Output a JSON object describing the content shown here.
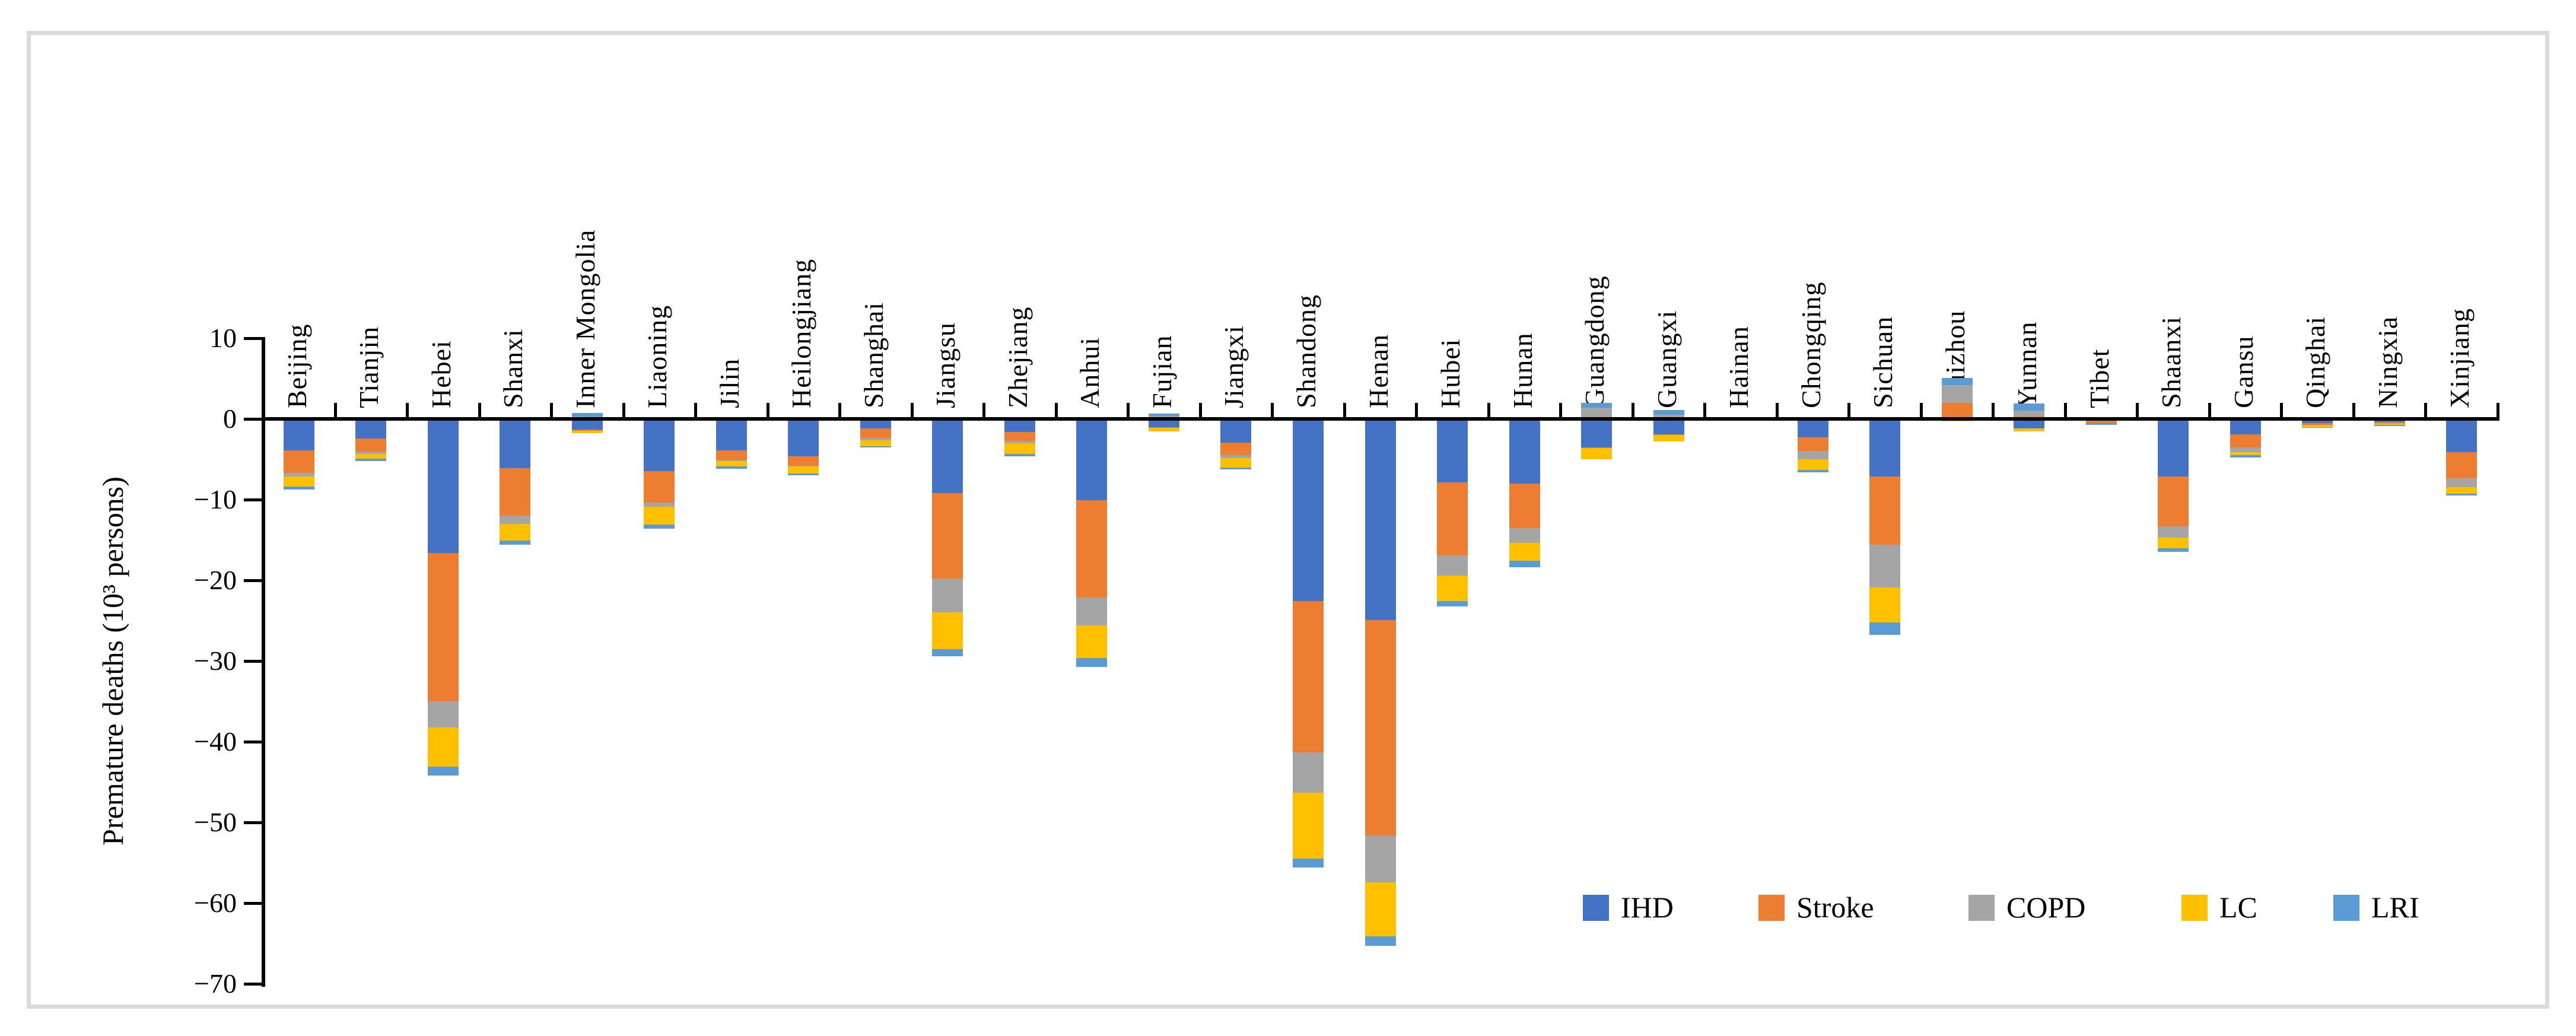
{
  "chart_data": {
    "type": "bar",
    "stacked": true,
    "orientation": "vertical",
    "ylabel": "Premature deaths (10³ persons)",
    "ylim": [
      -70,
      10
    ],
    "ytick_interval": 10,
    "ytick_labels": [
      "10",
      "0",
      "−10",
      "−20",
      "−30",
      "−40",
      "−50",
      "−60",
      "−70"
    ],
    "grid": "off",
    "legend_position": "inside-bottom-right",
    "categories": [
      "Beijing",
      "Tianjin",
      "Hebei",
      "Shanxi",
      "Inner Mongolia",
      "Liaoning",
      "Jilin",
      "Heilongjiang",
      "Shanghai",
      "Jiangsu",
      "Zhejiang",
      "Anhui",
      "Fujian",
      "Jiangxi",
      "Shandong",
      "Henan",
      "Hubei",
      "Hunan",
      "Guangdong",
      "Guangxi",
      "Hainan",
      "Chongqing",
      "Sichuan",
      "Guizhou",
      "Yunnan",
      "Tibet",
      "Shaanxi",
      "Gansu",
      "Qinghai",
      "Ningxia",
      "Xinjiang"
    ],
    "series": [
      {
        "name": "IHD",
        "color": "#4472C4",
        "values": [
          -3.9,
          -2.4,
          -16.6,
          -6.1,
          -1.35,
          -6.5,
          -3.9,
          -4.6,
          -1.15,
          -9.2,
          -1.6,
          -10.05,
          -1.0,
          -2.95,
          -22.6,
          -24.9,
          -7.9,
          -8.0,
          -3.5,
          -1.9,
          0,
          -2.3,
          -7.1,
          0,
          -1.2,
          -0.05,
          -7.1,
          -1.9,
          -0.5,
          -0.35,
          -4.15
        ]
      },
      {
        "name": "Stroke",
        "color": "#ED7D31",
        "values": [
          -2.8,
          -1.65,
          -18.4,
          -5.85,
          -0.1,
          -3.9,
          -1.15,
          -1.2,
          -1.2,
          -10.6,
          -1.15,
          -12.05,
          -0.1,
          -1.55,
          -18.7,
          -26.7,
          -9.0,
          -5.5,
          -0.1,
          -0.05,
          0,
          -1.65,
          -8.5,
          2.0,
          0.3,
          -0.5,
          -6.2,
          -1.6,
          -0.2,
          -0.2,
          -3.2
        ]
      },
      {
        "name": "COPD",
        "color": "#A5A5A5",
        "values": [
          -0.45,
          -0.3,
          -3.2,
          -1.1,
          0.3,
          -0.5,
          -0.2,
          -0.1,
          -0.3,
          -4.2,
          -0.3,
          -3.5,
          0.4,
          -0.35,
          -5.0,
          -5.8,
          -2.5,
          -1.9,
          1.4,
          0.55,
          0,
          -1.05,
          -5.3,
          2.2,
          0.7,
          0,
          -1.4,
          -0.6,
          -0.1,
          -0.05,
          -1.1
        ]
      },
      {
        "name": "LC",
        "color": "#FFC000",
        "values": [
          -1.25,
          -0.55,
          -4.9,
          -2.0,
          -0.3,
          -2.2,
          -0.65,
          -0.9,
          -0.7,
          -4.5,
          -1.3,
          -4.0,
          -0.45,
          -1.2,
          -8.2,
          -6.7,
          -3.2,
          -2.2,
          -1.4,
          -0.85,
          0,
          -1.3,
          -4.3,
          -0.3,
          -0.35,
          0,
          -1.3,
          -0.4,
          -0.2,
          -0.15,
          -0.8
        ]
      },
      {
        "name": "LRI",
        "color": "#5B9BD5",
        "values": [
          -0.35,
          -0.35,
          -1.1,
          -0.55,
          0.45,
          -0.5,
          -0.25,
          -0.2,
          -0.15,
          -0.9,
          -0.25,
          -1.1,
          0.25,
          -0.2,
          -1.1,
          -1.2,
          -0.6,
          -0.8,
          0.6,
          0.55,
          0,
          -0.3,
          -1.6,
          0.9,
          0.9,
          -0.2,
          -0.5,
          -0.3,
          -0.1,
          -0.05,
          -0.2
        ]
      }
    ]
  }
}
